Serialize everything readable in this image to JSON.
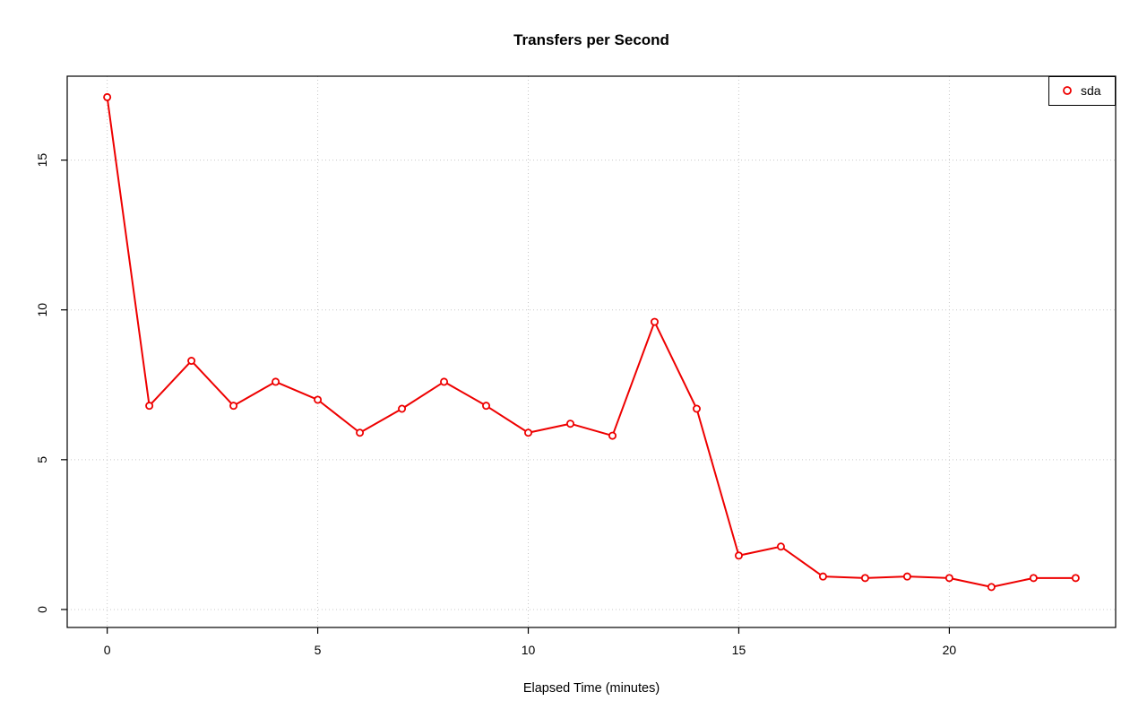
{
  "chart_data": {
    "type": "line",
    "title": "Transfers per Second",
    "xlabel": "Elapsed Time (minutes)",
    "ylabel": "",
    "x": [
      0,
      1,
      2,
      3,
      4,
      5,
      6,
      7,
      8,
      9,
      10,
      11,
      12,
      13,
      14,
      15,
      16,
      17,
      18,
      19,
      20,
      21,
      22,
      23
    ],
    "series": [
      {
        "name": "sda",
        "color": "#ee0000",
        "marker": "open-circle",
        "values": [
          17.1,
          6.8,
          8.3,
          6.8,
          7.6,
          7.0,
          5.9,
          6.7,
          7.6,
          6.8,
          5.9,
          6.2,
          5.8,
          9.6,
          6.7,
          1.8,
          2.1,
          1.1,
          1.05,
          1.1,
          1.05,
          0.75,
          1.05,
          1.05
        ]
      }
    ],
    "xticks": [
      0,
      5,
      10,
      15,
      20
    ],
    "yticks": [
      0,
      5,
      10,
      15
    ],
    "xlim": [
      -0.95,
      23.95
    ],
    "ylim": [
      -0.6,
      17.8
    ],
    "grid": "dotted",
    "grid_color": "#c8c8c8",
    "box_color": "#000000",
    "legend_position": "top-right"
  }
}
